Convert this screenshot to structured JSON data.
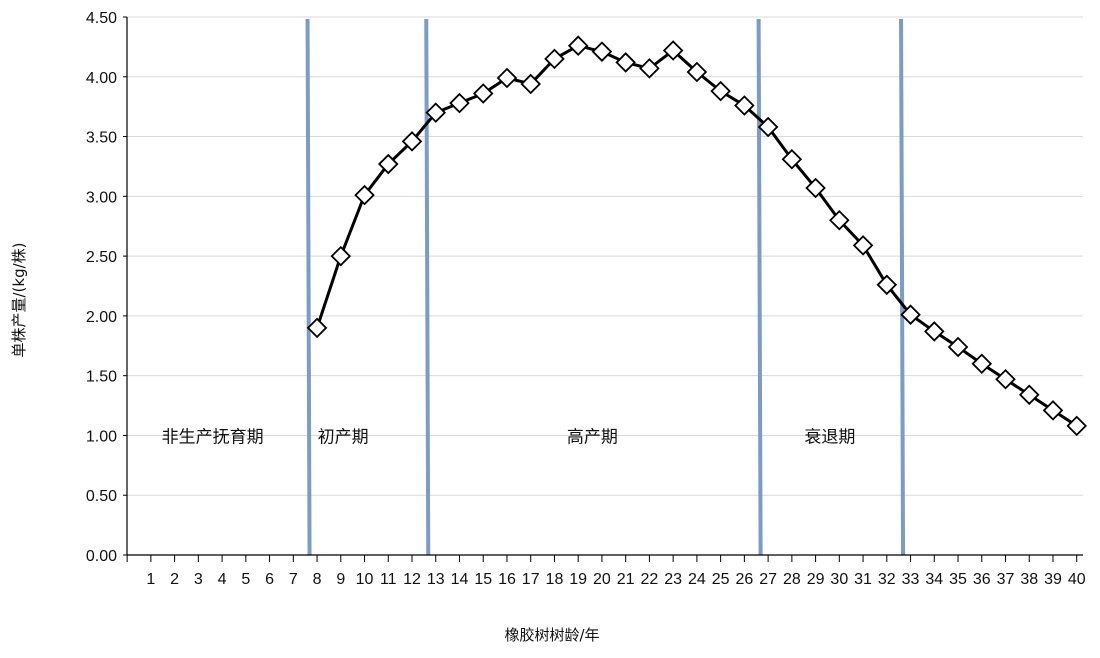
{
  "chart_data": {
    "type": "line",
    "xlabel": "橡胶树树龄/年",
    "ylabel": "单株产量/(kg/株)",
    "categories": [
      "1",
      "2",
      "3",
      "4",
      "5",
      "6",
      "7",
      "8",
      "9",
      "10",
      "11",
      "12",
      "13",
      "14",
      "15",
      "16",
      "17",
      "18",
      "19",
      "20",
      "21",
      "22",
      "23",
      "24",
      "25",
      "26",
      "27",
      "28",
      "29",
      "30",
      "31",
      "32",
      "33",
      "34",
      "35",
      "36",
      "37",
      "38",
      "39",
      "40"
    ],
    "x": [
      8,
      9,
      10,
      11,
      12,
      13,
      14,
      15,
      16,
      17,
      18,
      19,
      20,
      21,
      22,
      23,
      24,
      25,
      26,
      27,
      28,
      29,
      30,
      31,
      32,
      33,
      34,
      35,
      36,
      37,
      38,
      39,
      40
    ],
    "values": [
      1.9,
      2.5,
      3.01,
      3.27,
      3.46,
      3.7,
      3.78,
      3.86,
      3.99,
      3.94,
      4.15,
      4.26,
      4.21,
      4.12,
      4.07,
      4.22,
      4.04,
      3.88,
      3.76,
      3.58,
      3.31,
      3.07,
      2.8,
      2.59,
      2.26,
      2.01,
      1.87,
      1.74,
      1.6,
      1.47,
      1.34,
      1.21,
      1.08
    ],
    "ylim": [
      0,
      4.5
    ],
    "yticks": [
      "0.00",
      "0.50",
      "1.00",
      "1.50",
      "2.00",
      "2.50",
      "3.00",
      "3.50",
      "4.00",
      "4.50"
    ],
    "grid": true,
    "phase_dividers_x": [
      7.6,
      12.6,
      26.6,
      32.6
    ],
    "phases": [
      {
        "label": "非生产抚育期",
        "x": 3.6
      },
      {
        "label": "初产期",
        "x": 9.1
      },
      {
        "label": "高产期",
        "x": 19.6
      },
      {
        "label": "衰退期",
        "x": 29.6
      }
    ],
    "phase_label_y": 1.0,
    "colors": {
      "line": "#000000",
      "marker_fill": "#ffffff",
      "divider": "#7b9bc9",
      "grid": "#d9d9d9",
      "axis": "#000000"
    }
  }
}
